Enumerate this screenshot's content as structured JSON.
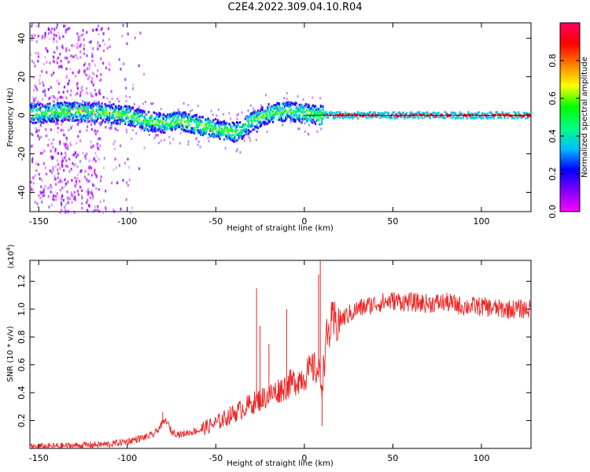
{
  "title": "C2E4.2022.309.04.10.R04",
  "chart_data": [
    {
      "type": "heatmap",
      "title": "C2E4.2022.309.04.10.R04",
      "xlabel": "Height of straight line (km)",
      "ylabel": "Frequency (Hz)",
      "xlim": [
        -155,
        128
      ],
      "ylim": [
        -50,
        48
      ],
      "xticks": [
        -150,
        -100,
        -50,
        0,
        50,
        100
      ],
      "yticks": [
        -40,
        -20,
        0,
        20,
        40
      ],
      "colorbar": {
        "label": "Normalized spectral amplitude",
        "lim": [
          0,
          1
        ],
        "ticks": [
          "0.0",
          "0.2",
          "0.4",
          "0.6",
          "0.8"
        ],
        "colormap": [
          "#ff00ff",
          "#8000ff",
          "#0000ff",
          "#00c0ff",
          "#00ff80",
          "#00ff00",
          "#ffff00",
          "#ff8000",
          "#ff0000",
          "#ff0060"
        ]
      },
      "ridge": {
        "x": [
          -150,
          -130,
          -110,
          -100,
          -90,
          -80,
          -70,
          -60,
          -50,
          -45,
          -40,
          -35,
          -30,
          -20,
          -10,
          0,
          10,
          20,
          40,
          60,
          80,
          100,
          128
        ],
        "y": [
          1,
          2,
          1,
          0,
          -3,
          -4,
          -3,
          -5,
          -7,
          -8,
          -9,
          -7,
          -3,
          1,
          2,
          1,
          0,
          0,
          0,
          0,
          0,
          0,
          0
        ]
      }
    },
    {
      "type": "line",
      "xlabel": "Height of straight line (km)",
      "ylabel": "SNR (10 * v/v)",
      "y_multiplier": "(x10^4)",
      "xlim": [
        -155,
        128
      ],
      "ylim": [
        0,
        1.35
      ],
      "xticks": [
        -150,
        -100,
        -50,
        0,
        50,
        100
      ],
      "yticks": [
        "0.2",
        "0.4",
        "0.6",
        "0.8",
        "1.0",
        "1.2"
      ],
      "series_color": "#ee2222",
      "series": [
        {
          "x": [
            -155,
            -130,
            -110,
            -100,
            -90,
            -85,
            -80,
            -78,
            -75,
            -70,
            -60,
            -50,
            -40,
            -30,
            -20,
            -10,
            0,
            5,
            8,
            10,
            12,
            15,
            20,
            30,
            40,
            50,
            60,
            70,
            80,
            90,
            100,
            110,
            120,
            128
          ],
          "y": [
            0.01,
            0.02,
            0.03,
            0.05,
            0.08,
            0.1,
            0.18,
            0.2,
            0.12,
            0.1,
            0.13,
            0.18,
            0.25,
            0.32,
            0.38,
            0.45,
            0.52,
            0.58,
            0.55,
            0.45,
            0.75,
            0.88,
            0.92,
            1.0,
            1.04,
            1.06,
            1.05,
            1.04,
            1.05,
            1.02,
            1.02,
            1.0,
            1.0,
            1.0
          ]
        }
      ],
      "spikes": {
        "x": [
          -80,
          -27,
          -25,
          -20,
          -10,
          8,
          9,
          10
        ],
        "y": [
          0.26,
          1.15,
          0.88,
          0.75,
          1.0,
          1.25,
          1.35,
          0.16
        ]
      }
    }
  ]
}
